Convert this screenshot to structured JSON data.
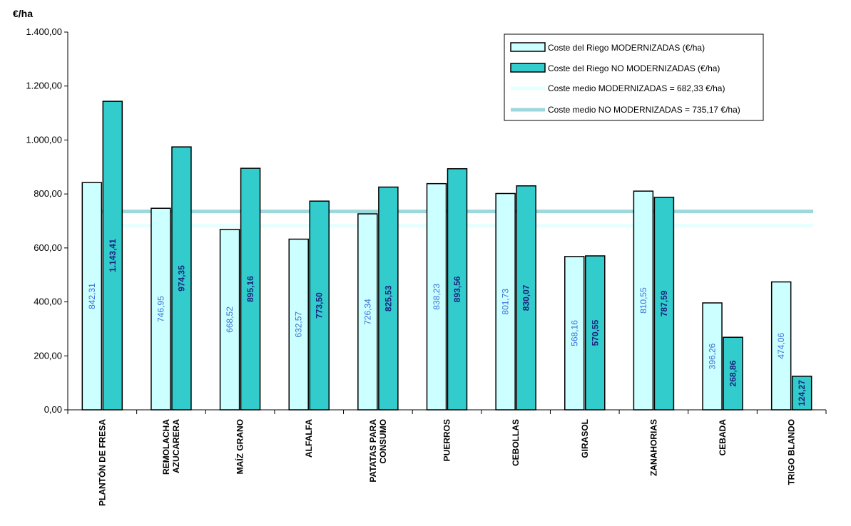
{
  "chart_data": {
    "type": "bar",
    "ylabel": "€/ha",
    "ylim": [
      0,
      1400
    ],
    "yticks": [
      "0,00",
      "200,00",
      "400,00",
      "600,00",
      "800,00",
      "1.000,00",
      "1.200,00",
      "1.400,00"
    ],
    "categories": [
      [
        "PLANTÓN DE FRESA"
      ],
      [
        "REMOLACHA",
        "AZUCARERA"
      ],
      [
        "MAÍZ GRANO"
      ],
      [
        "ALFALFA"
      ],
      [
        "PATATAS PARA",
        "CONSUMO"
      ],
      [
        "PUERROS"
      ],
      [
        "CEBOLLAS"
      ],
      [
        "GIRASOL"
      ],
      [
        "ZANAHORIAS"
      ],
      [
        "CEBADA"
      ],
      [
        "TRIGO BLANDO"
      ]
    ],
    "series": [
      {
        "name": "Coste del Riego MODERNIZADAS (€/ha)",
        "color": "#ccffff",
        "values": [
          842.31,
          746.95,
          668.52,
          632.57,
          726.34,
          838.23,
          801.73,
          568.16,
          810.55,
          396.26,
          474.06
        ],
        "labels": [
          "842,31",
          "746,95",
          "668,52",
          "632,57",
          "726,34",
          "838,23",
          "801,73",
          "568,16",
          "810,55",
          "396,26",
          "474,06"
        ]
      },
      {
        "name": "Coste del Riego NO MODERNIZADAS (€/ha)",
        "color": "#33cccc",
        "values": [
          1143.41,
          974.35,
          895.16,
          773.5,
          825.53,
          893.56,
          830.07,
          570.55,
          787.59,
          268.86,
          124.27
        ],
        "labels": [
          "1.143,41",
          "974,35",
          "895,16",
          "773,50",
          "825,53",
          "893,56",
          "830,07",
          "570,55",
          "787,59",
          "268,86",
          "124,27"
        ]
      }
    ],
    "reference_lines": [
      {
        "name": "Coste medio MODERNIZADAS = 682,33 €/ha)",
        "value": 682.33,
        "color": "#e6ffff"
      },
      {
        "name": "Coste medio NO MODERNIZADAS = 735,17 €/ha)",
        "value": 735.17,
        "color": "#9cd8dc"
      }
    ],
    "legend_position": "top-right",
    "grid": false
  }
}
